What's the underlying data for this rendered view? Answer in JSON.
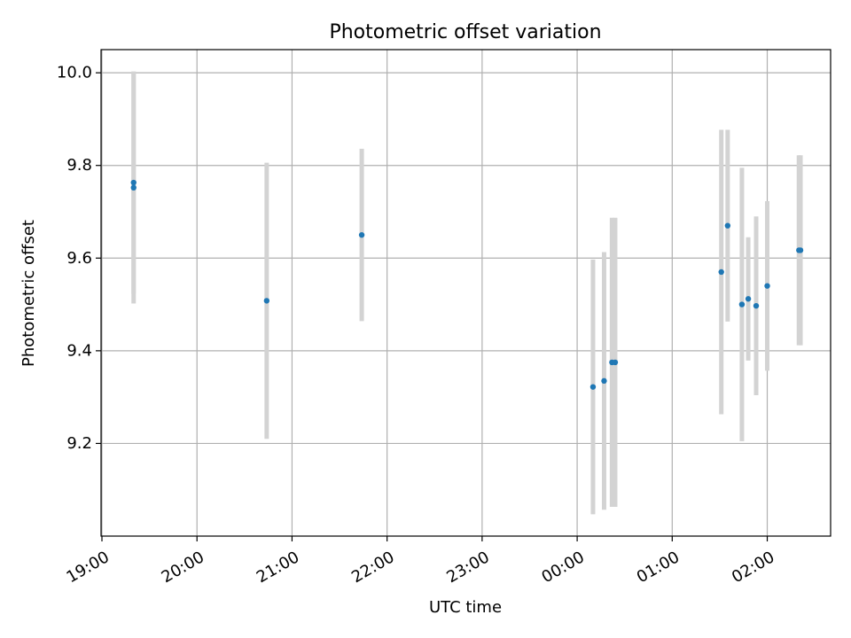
{
  "chart_data": {
    "type": "scatter",
    "title": "Photometric offset variation",
    "xlabel": "UTC time",
    "ylabel": "Photometric offset",
    "x_is_time": true,
    "x_range": [
      "19:00",
      "02:40"
    ],
    "ylim": [
      9.0,
      10.05
    ],
    "x_ticks": [
      "19:00",
      "20:00",
      "21:00",
      "22:00",
      "23:00",
      "00:00",
      "01:00",
      "02:00"
    ],
    "y_ticks": [
      "9.2",
      "9.4",
      "9.6",
      "9.8",
      "10.0"
    ],
    "grid": true,
    "colors": {
      "point": "#1f77b4",
      "errorbar": "#d3d3d3",
      "grid": "#b0b0b0",
      "axes": "#000000"
    },
    "points": [
      {
        "x": "19:20",
        "y": 9.763,
        "err": 0.24
      },
      {
        "x": "19:20",
        "y": 9.752,
        "err": 0.25
      },
      {
        "x": "20:44",
        "y": 9.508,
        "err": 0.298
      },
      {
        "x": "21:44",
        "y": 9.65,
        "err": 0.186
      },
      {
        "x": "00:10",
        "y": 9.322,
        "err": 0.275
      },
      {
        "x": "00:17",
        "y": 9.335,
        "err": 0.278
      },
      {
        "x": "00:22",
        "y": 9.375,
        "err": 0.312
      },
      {
        "x": "00:24",
        "y": 9.375,
        "err": 0.312
      },
      {
        "x": "01:31",
        "y": 9.57,
        "err": 0.307
      },
      {
        "x": "01:35",
        "y": 9.67,
        "err": 0.207
      },
      {
        "x": "01:44",
        "y": 9.5,
        "err": 0.295
      },
      {
        "x": "01:48",
        "y": 9.512,
        "err": 0.133
      },
      {
        "x": "01:53",
        "y": 9.497,
        "err": 0.193
      },
      {
        "x": "02:00",
        "y": 9.54,
        "err": 0.183
      },
      {
        "x": "02:20",
        "y": 9.617,
        "err": 0.205
      },
      {
        "x": "02:21",
        "y": 9.617,
        "err": 0.205
      }
    ]
  }
}
